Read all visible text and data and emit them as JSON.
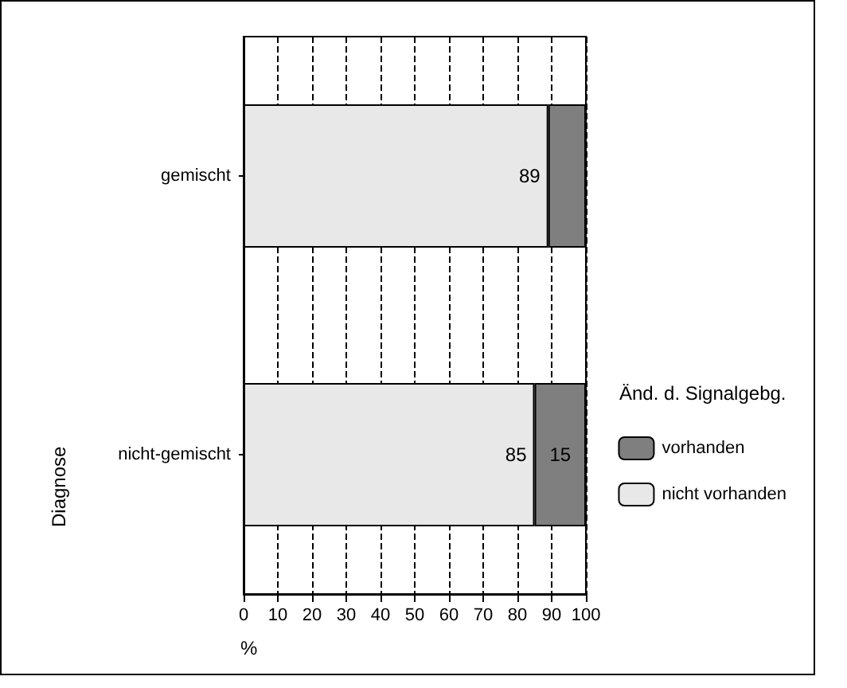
{
  "chart_data": {
    "type": "bar",
    "orientation": "horizontal",
    "stacked": true,
    "categories": [
      "gemischt",
      "nicht-gemischt"
    ],
    "series": [
      {
        "name": "nicht vorhanden",
        "color": "#e8e8e8",
        "values": [
          89,
          85
        ],
        "value_labels": [
          "89",
          "85"
        ]
      },
      {
        "name": "vorhanden",
        "color": "#7f7f7f",
        "values": [
          11,
          15
        ],
        "value_labels": [
          null,
          "15"
        ]
      }
    ],
    "xlim": [
      0,
      100
    ],
    "xticks": [
      0,
      10,
      20,
      30,
      40,
      50,
      60,
      70,
      80,
      90,
      100
    ],
    "grid": "x",
    "xlabel": "%",
    "ylabel": "Diagnose",
    "legend_title": "Änd. d. Signalgebg.",
    "legend": "right"
  }
}
